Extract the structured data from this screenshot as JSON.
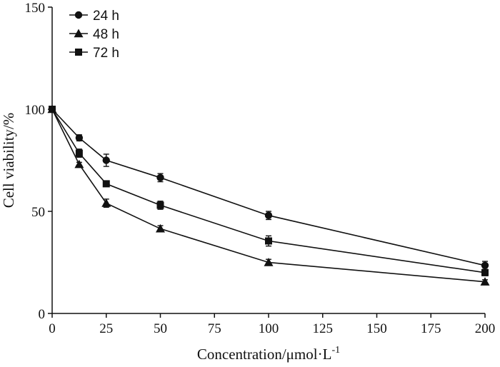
{
  "chart_data": {
    "type": "line",
    "xlabel": "Concentration/μmol·L",
    "xlabel_superscript": "-1",
    "ylabel": "Cell viability/%",
    "xlim": [
      0,
      200
    ],
    "ylim": [
      0,
      150
    ],
    "x_ticks": [
      0,
      25,
      50,
      75,
      100,
      125,
      150,
      175,
      200
    ],
    "y_ticks": [
      0,
      50,
      100,
      150
    ],
    "grid": false,
    "legend_position": "top-left",
    "x": [
      0,
      12.5,
      25,
      50,
      100,
      200
    ],
    "series": [
      {
        "name": "24 h",
        "marker": "circle",
        "values": [
          100,
          86,
          75,
          66.5,
          48,
          23.5
        ],
        "errors": [
          0.8,
          1.5,
          3,
          2,
          2,
          2
        ]
      },
      {
        "name": "48 h",
        "marker": "triangle",
        "values": [
          100,
          73,
          54,
          41.5,
          25,
          15.5
        ],
        "errors": [
          0.8,
          1,
          2,
          1.5,
          1.5,
          1
        ]
      },
      {
        "name": "72 h",
        "marker": "square",
        "values": [
          100,
          78.5,
          63.5,
          53,
          35.5,
          20
        ],
        "errors": [
          0.8,
          2,
          1,
          2,
          2.5,
          1.5
        ]
      }
    ]
  }
}
